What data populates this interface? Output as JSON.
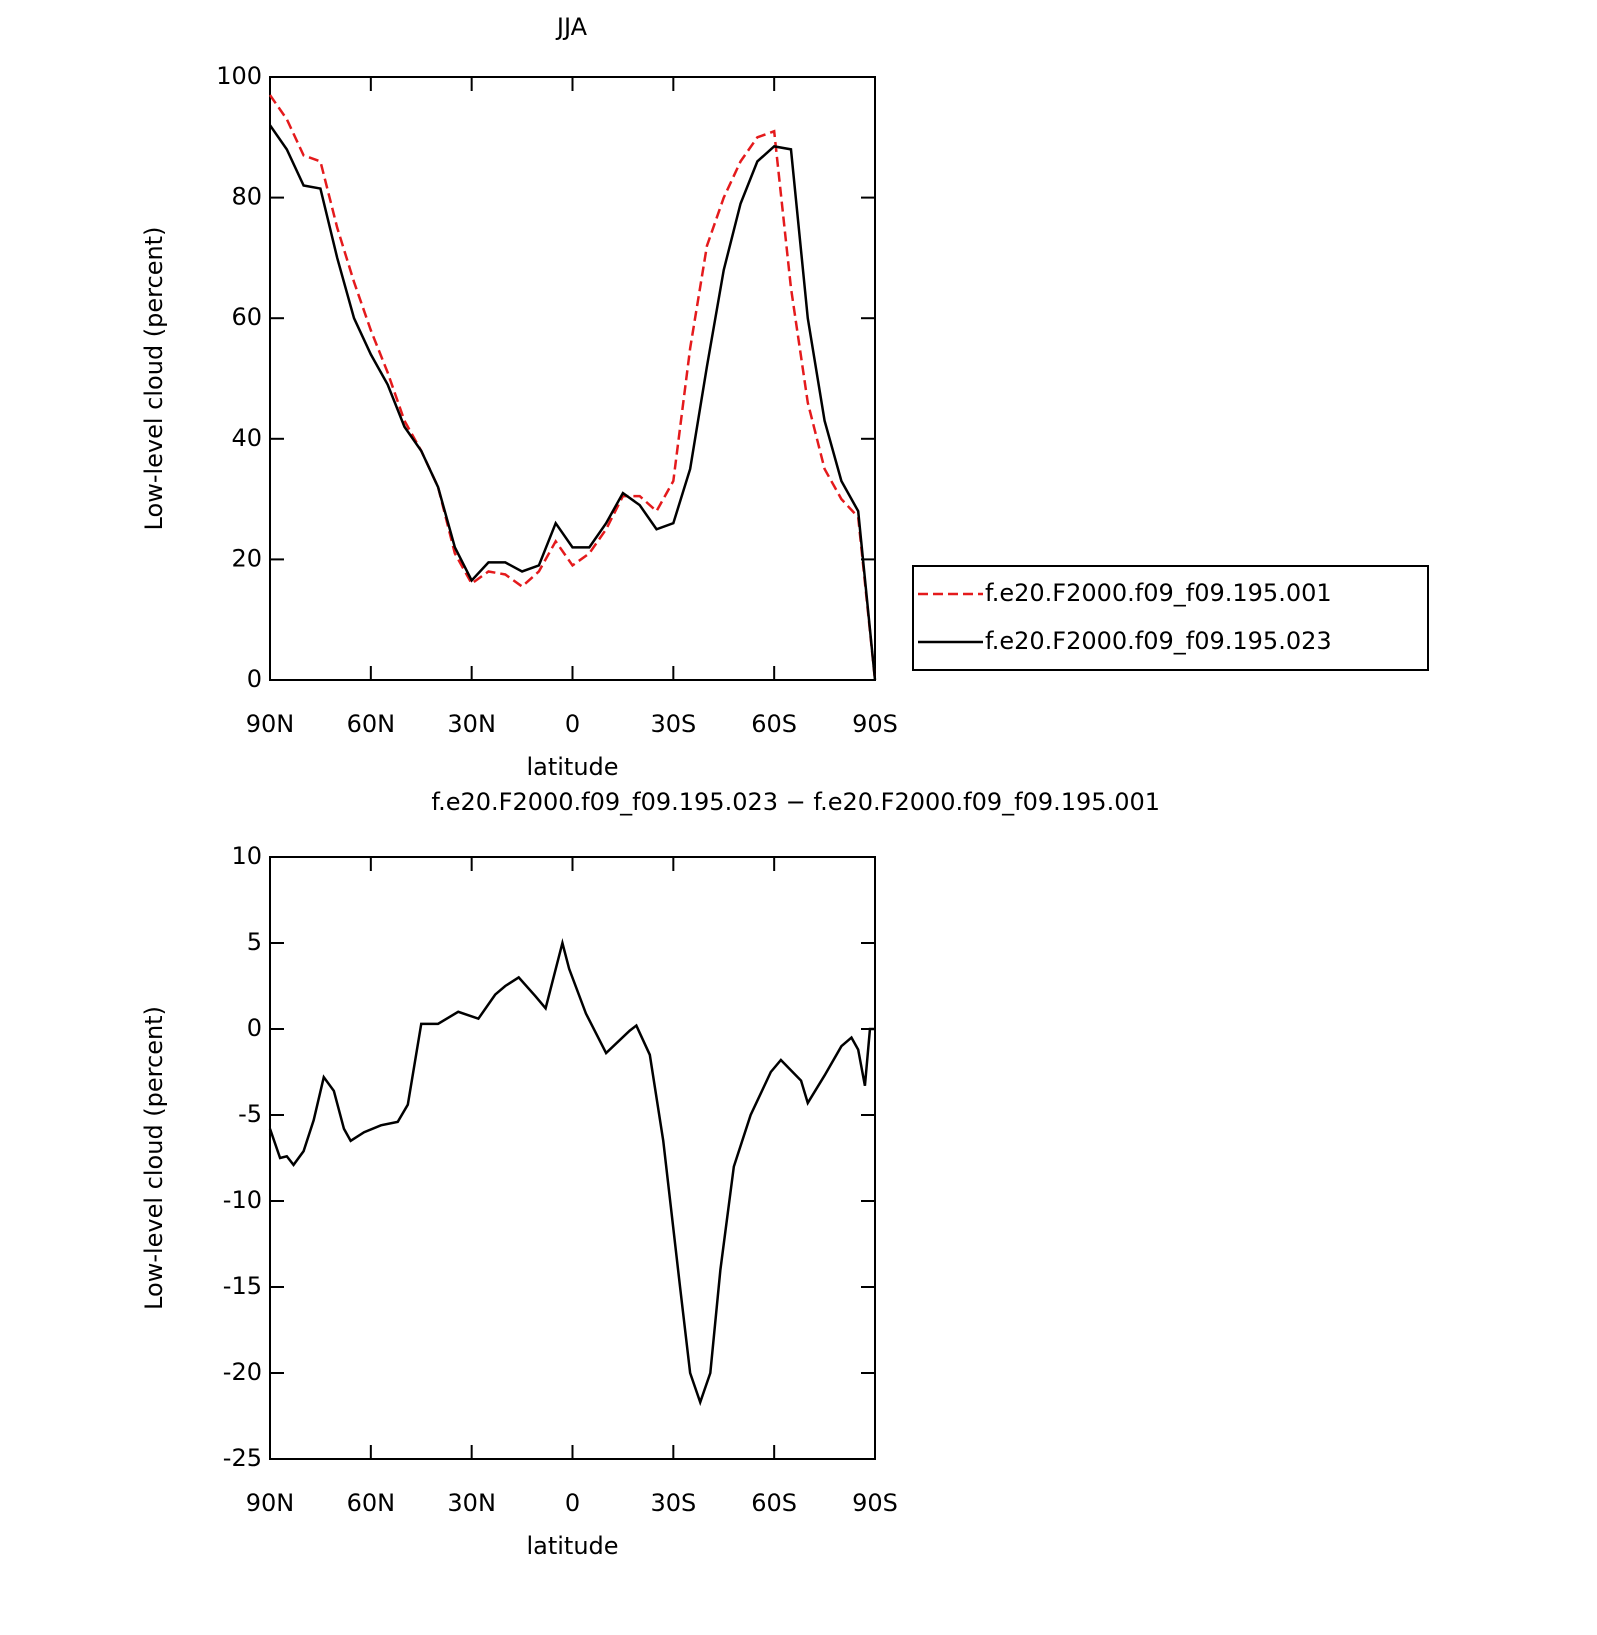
{
  "chart_data": [
    {
      "type": "line",
      "title": "JJA",
      "xlabel": "latitude",
      "ylabel": "Low-level cloud (percent)",
      "x": [
        90,
        85,
        80,
        75,
        70,
        65,
        60,
        55,
        50,
        45,
        40,
        35,
        30,
        25,
        20,
        15,
        10,
        5,
        0,
        -5,
        -10,
        -15,
        -20,
        -25,
        -30,
        -35,
        -40,
        -45,
        -50,
        -55,
        -60,
        -65,
        -70,
        -75,
        -80,
        -85,
        -90
      ],
      "series": [
        {
          "name": "f.e20.F2000.f09_f09.195.001",
          "color": "#e41a1c",
          "dash": "dashed",
          "values": [
            97,
            93,
            87,
            86,
            75,
            66,
            58,
            51,
            43,
            38,
            32,
            21,
            16,
            18,
            17.5,
            15.5,
            18,
            23,
            19,
            21,
            25,
            30.5,
            30.5,
            28,
            33,
            55,
            72,
            80,
            86,
            90,
            91,
            65,
            46,
            35,
            30,
            27,
            0
          ]
        },
        {
          "name": "f.e20.F2000.f09_f09.195.023",
          "color": "#000000",
          "dash": "solid",
          "values": [
            92,
            88,
            82,
            81.5,
            70,
            60,
            54,
            49,
            42,
            38,
            32,
            22,
            16.5,
            19.5,
            19.5,
            18,
            19,
            26,
            22,
            22,
            26,
            31,
            29,
            25,
            26,
            35,
            52,
            68,
            79,
            86,
            88.5,
            88,
            60,
            43,
            33,
            28,
            0
          ]
        }
      ],
      "xlim": [
        90,
        -90
      ],
      "xticks": [
        {
          "value": 90,
          "label": "90N"
        },
        {
          "value": 60,
          "label": "60N"
        },
        {
          "value": 30,
          "label": "30N"
        },
        0,
        {
          "value": -30,
          "label": "30S"
        },
        {
          "value": -60,
          "label": "60S"
        },
        {
          "value": -90,
          "label": "90S"
        }
      ],
      "ylim": [
        0,
        100
      ],
      "yticks": [
        0,
        20,
        40,
        60,
        80,
        100
      ],
      "legend": true,
      "legend_position": "outside right"
    },
    {
      "type": "line",
      "title": "f.e20.F2000.f09_f09.195.023 − f.e20.F2000.f09_f09.195.001",
      "xlabel": "latitude",
      "ylabel": "Low-level cloud (percent)",
      "x": [
        90,
        87,
        85,
        83,
        80,
        77,
        74,
        71,
        68,
        66,
        62,
        57,
        52,
        49,
        45,
        40,
        34,
        28,
        23,
        20,
        16,
        11,
        8,
        3,
        1,
        -4,
        -10,
        -17,
        -19,
        -23,
        -27,
        -32,
        -35,
        -38,
        -41,
        -44,
        -48,
        -53,
        -59,
        -62,
        -68,
        -70,
        -75,
        -80,
        -83,
        -85,
        -87,
        -88.5,
        -90
      ],
      "series": [
        {
          "name": "difference",
          "color": "#000000",
          "dash": "solid",
          "values": [
            -5.8,
            -7.5,
            -7.4,
            -7.9,
            -7.1,
            -5.3,
            -2.8,
            -3.6,
            -5.8,
            -6.5,
            -6.0,
            -5.6,
            -5.4,
            -4.4,
            0.3,
            0.3,
            1.0,
            0.6,
            2.0,
            2.5,
            3.0,
            1.9,
            1.2,
            5.0,
            3.5,
            0.9,
            -1.4,
            -0.1,
            0.2,
            -1.5,
            -6.5,
            -15,
            -20,
            -21.7,
            -20,
            -14,
            -8,
            -5,
            -2.5,
            -1.8,
            -3.0,
            -4.3,
            -2.7,
            -1.0,
            -0.5,
            -1.2,
            -3.3,
            0,
            0
          ]
        }
      ],
      "xlim": [
        90,
        -90
      ],
      "xticks": [
        {
          "value": 90,
          "label": "90N"
        },
        {
          "value": 60,
          "label": "60N"
        },
        {
          "value": 30,
          "label": "30N"
        },
        0,
        {
          "value": -30,
          "label": "30S"
        },
        {
          "value": -60,
          "label": "60S"
        },
        {
          "value": -90,
          "label": "90S"
        }
      ],
      "ylim": [
        -25,
        10
      ],
      "yticks": [
        -25,
        -20,
        -15,
        -10,
        -5,
        0,
        5,
        10
      ],
      "legend": false
    }
  ]
}
